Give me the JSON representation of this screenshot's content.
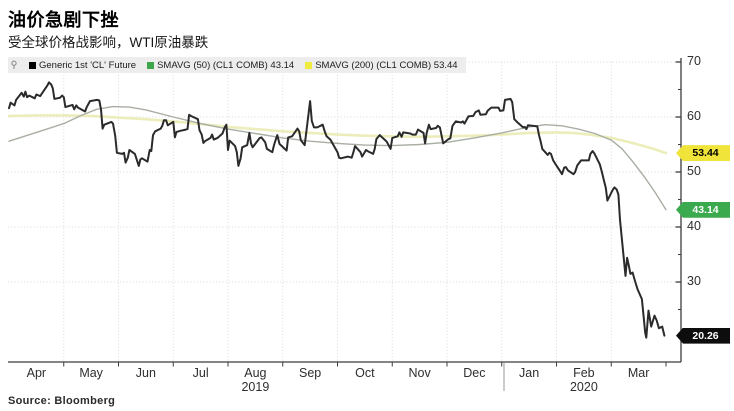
{
  "header": {
    "title": "油价急剧下挫",
    "subtitle": "受全球价格战影响，WTI原油暴跌"
  },
  "legend": {
    "pin_icon": "pin",
    "items": [
      {
        "label": "Generic 1st 'CL' Future",
        "color": "#000000"
      },
      {
        "label": "SMAVG (50) (CL1 COMB) 43.14",
        "color": "#3fa54a"
      },
      {
        "label": "SMAVG (200) (CL1 COMB) 53.44",
        "color": "#f0ec3d"
      }
    ]
  },
  "source": "Source: Bloomberg",
  "chart_data": {
    "type": "line",
    "title": "油价急剧下挫",
    "subtitle": "受全球价格战影响，WTI原油暴跌",
    "x_unit": "months from Apr 2019 (fractional = day of month)",
    "x_months": [
      "Apr",
      "May",
      "Jun",
      "Jul",
      "Aug",
      "Sep",
      "Oct",
      "Nov",
      "Dec",
      "Jan",
      "Feb",
      "Mar"
    ],
    "year_labels": [
      {
        "text": "2019",
        "month_index": 4
      },
      {
        "text": "2020",
        "month_index": 10
      }
    ],
    "y_ticks": [
      70,
      60,
      50,
      40,
      30
    ],
    "y_minor_ticks": [
      65,
      55,
      45,
      35,
      25
    ],
    "y_range_visible": [
      15.5,
      70.7
    ],
    "grid": true,
    "legend_position": "top-left",
    "series": [
      {
        "name": "SMAVG (200) (CL1 COMB)",
        "last_value": 53.44,
        "color": "#ecedbb",
        "width": 2.6,
        "points": [
          [
            0,
            60.2
          ],
          [
            0.5,
            60.3
          ],
          [
            1,
            60.3
          ],
          [
            1.5,
            60.2
          ],
          [
            2,
            59.9
          ],
          [
            2.5,
            59.6
          ],
          [
            3,
            59.2
          ],
          [
            3.5,
            58.7
          ],
          [
            4,
            58.2
          ],
          [
            4.5,
            57.8
          ],
          [
            5,
            57.4
          ],
          [
            5.5,
            57.1
          ],
          [
            6,
            56.8
          ],
          [
            6.5,
            56.6
          ],
          [
            7,
            56.5
          ],
          [
            7.5,
            56.4
          ],
          [
            8,
            56.5
          ],
          [
            8.5,
            56.6
          ],
          [
            9,
            56.8
          ],
          [
            9.5,
            57.1
          ],
          [
            10,
            57.2
          ],
          [
            10.3,
            57.1
          ],
          [
            10.6,
            56.8
          ],
          [
            11,
            56.2
          ],
          [
            11.3,
            55.5
          ],
          [
            11.6,
            54.7
          ],
          [
            11.8,
            54.1
          ],
          [
            12,
            53.44
          ]
        ]
      },
      {
        "name": "SMAVG (50) (CL1 COMB)",
        "last_value": 43.14,
        "color": "#a8aea4",
        "width": 1.4,
        "points": [
          [
            0,
            55.6
          ],
          [
            0.5,
            57.2
          ],
          [
            1,
            58.8
          ],
          [
            1.3,
            60.2
          ],
          [
            1.6,
            61.4
          ],
          [
            1.9,
            61.9
          ],
          [
            2.2,
            61.8
          ],
          [
            2.5,
            61.3
          ],
          [
            3,
            60.0
          ],
          [
            3.5,
            58.8
          ],
          [
            4,
            57.8
          ],
          [
            4.5,
            57.0
          ],
          [
            5,
            56.2
          ],
          [
            5.5,
            55.6
          ],
          [
            6,
            55.2
          ],
          [
            6.5,
            54.9
          ],
          [
            7,
            54.8
          ],
          [
            7.5,
            55.0
          ],
          [
            8,
            55.4
          ],
          [
            8.5,
            56.2
          ],
          [
            9,
            57.1
          ],
          [
            9.5,
            58.2
          ],
          [
            9.8,
            58.6
          ],
          [
            10.1,
            58.4
          ],
          [
            10.4,
            57.8
          ],
          [
            10.7,
            57.0
          ],
          [
            11,
            55.8
          ],
          [
            11.2,
            54.2
          ],
          [
            11.4,
            51.8
          ],
          [
            11.6,
            49.2
          ],
          [
            11.8,
            46.3
          ],
          [
            12,
            43.14
          ]
        ]
      },
      {
        "name": "Generic 1st 'CL' Future",
        "last_value": 20.26,
        "color": "#2b2b2b",
        "width": 2,
        "points": [
          [
            0,
            61.6
          ],
          [
            0.03,
            62.6
          ],
          [
            0.1,
            62.1
          ],
          [
            0.13,
            63.1
          ],
          [
            0.23,
            64.4
          ],
          [
            0.27,
            63.7
          ],
          [
            0.3,
            64.6
          ],
          [
            0.33,
            63.6
          ],
          [
            0.37,
            63.9
          ],
          [
            0.47,
            63.4
          ],
          [
            0.5,
            64.1
          ],
          [
            0.57,
            63.8
          ],
          [
            0.7,
            65.7
          ],
          [
            0.73,
            66.3
          ],
          [
            0.77,
            65.9
          ],
          [
            0.8,
            65.2
          ],
          [
            0.83,
            63.3
          ],
          [
            0.93,
            63.5
          ],
          [
            0.97,
            63.9
          ],
          [
            1.0,
            63.6
          ],
          [
            1.03,
            61.8
          ],
          [
            1.06,
            61.9
          ],
          [
            1.16,
            62.2
          ],
          [
            1.19,
            61.4
          ],
          [
            1.23,
            62.1
          ],
          [
            1.26,
            61.7
          ],
          [
            1.39,
            61.0
          ],
          [
            1.42,
            61.8
          ],
          [
            1.48,
            62.9
          ],
          [
            1.61,
            63.1
          ],
          [
            1.65,
            63.0
          ],
          [
            1.68,
            61.4
          ],
          [
            1.71,
            57.9
          ],
          [
            1.74,
            58.6
          ],
          [
            1.87,
            59.1
          ],
          [
            1.9,
            58.8
          ],
          [
            1.94,
            56.6
          ],
          [
            1.97,
            53.5
          ],
          [
            2.07,
            53.3
          ],
          [
            2.1,
            53.5
          ],
          [
            2.13,
            51.7
          ],
          [
            2.17,
            52.6
          ],
          [
            2.2,
            54.0
          ],
          [
            2.3,
            53.3
          ],
          [
            2.37,
            51.1
          ],
          [
            2.4,
            52.3
          ],
          [
            2.43,
            52.5
          ],
          [
            2.53,
            51.9
          ],
          [
            2.57,
            54.0
          ],
          [
            2.6,
            53.8
          ],
          [
            2.63,
            56.7
          ],
          [
            2.67,
            57.4
          ],
          [
            2.77,
            57.9
          ],
          [
            2.8,
            58.4
          ],
          [
            2.83,
            59.4
          ],
          [
            2.87,
            59.4
          ],
          [
            2.9,
            58.5
          ],
          [
            3.0,
            59.1
          ],
          [
            3.03,
            56.3
          ],
          [
            3.06,
            57.3
          ],
          [
            3.13,
            57.5
          ],
          [
            3.23,
            57.7
          ],
          [
            3.26,
            57.8
          ],
          [
            3.29,
            60.4
          ],
          [
            3.32,
            60.2
          ],
          [
            3.45,
            59.6
          ],
          [
            3.48,
            57.6
          ],
          [
            3.52,
            56.8
          ],
          [
            3.55,
            55.3
          ],
          [
            3.58,
            55.6
          ],
          [
            3.68,
            56.2
          ],
          [
            3.71,
            56.8
          ],
          [
            3.74,
            55.9
          ],
          [
            3.81,
            56.2
          ],
          [
            3.9,
            57.0
          ],
          [
            3.94,
            58.1
          ],
          [
            3.97,
            58.6
          ],
          [
            4.0,
            54.0
          ],
          [
            4.03,
            55.7
          ],
          [
            4.13,
            54.7
          ],
          [
            4.16,
            53.6
          ],
          [
            4.19,
            51.1
          ],
          [
            4.23,
            52.5
          ],
          [
            4.26,
            54.5
          ],
          [
            4.35,
            54.9
          ],
          [
            4.39,
            57.1
          ],
          [
            4.42,
            55.2
          ],
          [
            4.45,
            54.5
          ],
          [
            4.48,
            54.9
          ],
          [
            4.58,
            56.2
          ],
          [
            4.61,
            56.3
          ],
          [
            4.68,
            55.4
          ],
          [
            4.71,
            54.2
          ],
          [
            4.81,
            53.6
          ],
          [
            4.84,
            54.9
          ],
          [
            4.87,
            55.8
          ],
          [
            4.9,
            56.7
          ],
          [
            4.94,
            55.1
          ],
          [
            5.07,
            53.9
          ],
          [
            5.1,
            56.3
          ],
          [
            5.17,
            56.5
          ],
          [
            5.27,
            57.9
          ],
          [
            5.3,
            57.4
          ],
          [
            5.33,
            55.8
          ],
          [
            5.4,
            54.9
          ],
          [
            5.5,
            62.9
          ],
          [
            5.53,
            59.3
          ],
          [
            5.57,
            58.1
          ],
          [
            5.63,
            58.1
          ],
          [
            5.73,
            58.6
          ],
          [
            5.77,
            57.3
          ],
          [
            5.8,
            56.5
          ],
          [
            5.87,
            55.9
          ],
          [
            5.97,
            54.1
          ],
          [
            6.0,
            53.6
          ],
          [
            6.03,
            52.6
          ],
          [
            6.06,
            52.5
          ],
          [
            6.19,
            52.8
          ],
          [
            6.26,
            52.6
          ],
          [
            6.29,
            53.6
          ],
          [
            6.32,
            54.7
          ],
          [
            6.42,
            53.6
          ],
          [
            6.45,
            52.8
          ],
          [
            6.52,
            54.0
          ],
          [
            6.55,
            53.8
          ],
          [
            6.65,
            53.3
          ],
          [
            6.68,
            54.2
          ],
          [
            6.71,
            56.0
          ],
          [
            6.77,
            56.7
          ],
          [
            6.87,
            55.8
          ],
          [
            6.9,
            55.5
          ],
          [
            6.97,
            54.2
          ],
          [
            7.0,
            56.2
          ],
          [
            7.1,
            56.5
          ],
          [
            7.13,
            57.2
          ],
          [
            7.17,
            56.4
          ],
          [
            7.2,
            57.2
          ],
          [
            7.33,
            57.0
          ],
          [
            7.37,
            56.8
          ],
          [
            7.43,
            56.8
          ],
          [
            7.47,
            57.7
          ],
          [
            7.57,
            57.1
          ],
          [
            7.6,
            55.2
          ],
          [
            7.63,
            57.1
          ],
          [
            7.67,
            58.6
          ],
          [
            7.7,
            57.8
          ],
          [
            7.8,
            58.0
          ],
          [
            7.83,
            58.4
          ],
          [
            7.87,
            58.1
          ],
          [
            7.93,
            55.2
          ],
          [
            8.03,
            56.0
          ],
          [
            8.06,
            56.1
          ],
          [
            8.1,
            58.4
          ],
          [
            8.16,
            59.2
          ],
          [
            8.26,
            59.0
          ],
          [
            8.29,
            59.2
          ],
          [
            8.32,
            58.8
          ],
          [
            8.39,
            60.1
          ],
          [
            8.48,
            60.2
          ],
          [
            8.52,
            60.9
          ],
          [
            8.58,
            61.2
          ],
          [
            8.61,
            60.4
          ],
          [
            8.71,
            60.5
          ],
          [
            8.74,
            61.1
          ],
          [
            8.81,
            61.7
          ],
          [
            8.94,
            61.7
          ],
          [
            8.97,
            61.1
          ],
          [
            9.03,
            61.2
          ],
          [
            9.06,
            63.1
          ],
          [
            9.16,
            63.3
          ],
          [
            9.19,
            62.7
          ],
          [
            9.23,
            59.6
          ],
          [
            9.29,
            59.0
          ],
          [
            9.39,
            58.1
          ],
          [
            9.42,
            58.2
          ],
          [
            9.45,
            57.8
          ],
          [
            9.48,
            58.5
          ],
          [
            9.65,
            58.3
          ],
          [
            9.68,
            56.7
          ],
          [
            9.71,
            55.6
          ],
          [
            9.74,
            54.2
          ],
          [
            9.84,
            53.1
          ],
          [
            9.87,
            53.5
          ],
          [
            9.9,
            53.3
          ],
          [
            9.94,
            52.1
          ],
          [
            9.97,
            51.6
          ],
          [
            10.07,
            50.1
          ],
          [
            10.1,
            49.6
          ],
          [
            10.14,
            50.8
          ],
          [
            10.17,
            50.9
          ],
          [
            10.21,
            50.3
          ],
          [
            10.31,
            49.6
          ],
          [
            10.34,
            50.0
          ],
          [
            10.38,
            51.2
          ],
          [
            10.45,
            52.1
          ],
          [
            10.59,
            52.1
          ],
          [
            10.62,
            53.3
          ],
          [
            10.66,
            53.8
          ],
          [
            10.69,
            53.4
          ],
          [
            10.79,
            51.4
          ],
          [
            10.83,
            50.0
          ],
          [
            10.86,
            48.7
          ],
          [
            10.9,
            47.1
          ],
          [
            10.93,
            44.8
          ],
          [
            11.03,
            46.8
          ],
          [
            11.06,
            47.2
          ],
          [
            11.1,
            46.8
          ],
          [
            11.13,
            45.9
          ],
          [
            11.16,
            41.3
          ],
          [
            11.26,
            31.1
          ],
          [
            11.29,
            34.4
          ],
          [
            11.32,
            33.0
          ],
          [
            11.35,
            31.5
          ],
          [
            11.39,
            31.7
          ],
          [
            11.44,
            30.0
          ],
          [
            11.48,
            28.7
          ],
          [
            11.56,
            26.9
          ],
          [
            11.62,
            20.8
          ],
          [
            11.64,
            19.9
          ],
          [
            11.68,
            24.8
          ],
          [
            11.73,
            21.9
          ],
          [
            11.79,
            23.9
          ],
          [
            11.83,
            23.0
          ],
          [
            11.87,
            21.6
          ],
          [
            11.93,
            21.9
          ],
          [
            11.97,
            20.26
          ]
        ]
      }
    ],
    "price_tags": [
      {
        "value": "53.44",
        "bg": "#f0e33a",
        "fg": "#000000"
      },
      {
        "value": "43.14",
        "bg": "#3ba94e",
        "fg": "#ffffff"
      },
      {
        "value": "20.26",
        "bg": "#0d0d0d",
        "fg": "#ffffff"
      }
    ]
  }
}
